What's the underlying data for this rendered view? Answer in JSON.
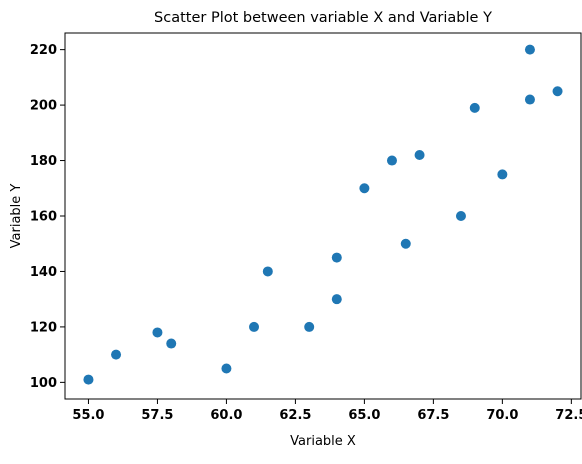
{
  "chart_data": {
    "type": "scatter",
    "title": "Scatter Plot between variable X and Variable Y",
    "xlabel": "Variable X",
    "ylabel": "Variable Y",
    "xlim": [
      54.15,
      72.85
    ],
    "ylim": [
      94,
      226
    ],
    "xticks": [
      55.0,
      57.5,
      60.0,
      62.5,
      65.0,
      67.5,
      70.0,
      72.5
    ],
    "xtick_labels": [
      "55.0",
      "57.5",
      "60.0",
      "62.5",
      "65.0",
      "67.5",
      "70.0",
      "72.5"
    ],
    "yticks": [
      100,
      120,
      140,
      160,
      180,
      200,
      220
    ],
    "ytick_labels": [
      "100",
      "120",
      "140",
      "160",
      "180",
      "200",
      "220"
    ],
    "grid": false,
    "marker_color": "#1f77b4",
    "series": [
      {
        "points": [
          {
            "x": 55.0,
            "y": 101
          },
          {
            "x": 56.0,
            "y": 110
          },
          {
            "x": 57.5,
            "y": 118
          },
          {
            "x": 58.0,
            "y": 114
          },
          {
            "x": 60.0,
            "y": 105
          },
          {
            "x": 61.0,
            "y": 120
          },
          {
            "x": 61.5,
            "y": 140
          },
          {
            "x": 63.0,
            "y": 120
          },
          {
            "x": 64.0,
            "y": 145
          },
          {
            "x": 64.0,
            "y": 130
          },
          {
            "x": 65.0,
            "y": 170
          },
          {
            "x": 66.0,
            "y": 180
          },
          {
            "x": 66.5,
            "y": 150
          },
          {
            "x": 67.0,
            "y": 182
          },
          {
            "x": 68.5,
            "y": 160
          },
          {
            "x": 69.0,
            "y": 199
          },
          {
            "x": 70.0,
            "y": 175
          },
          {
            "x": 71.0,
            "y": 220
          },
          {
            "x": 71.0,
            "y": 202
          },
          {
            "x": 72.0,
            "y": 205
          }
        ]
      }
    ]
  }
}
